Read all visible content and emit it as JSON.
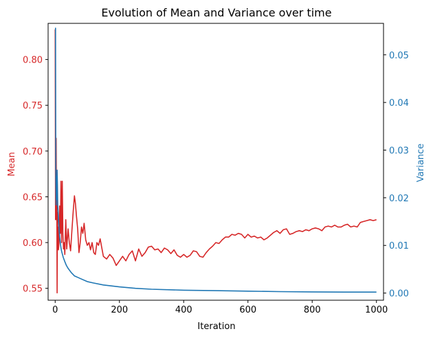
{
  "chart_data": {
    "type": "line",
    "title": "Evolution of Mean and Variance over time",
    "xlabel": "Iteration",
    "ylabel_left": "Mean",
    "ylabel_right": "Variance",
    "xlim": [
      -22,
      1022
    ],
    "ylim_left": [
      0.537,
      0.8395
    ],
    "ylim_right": [
      -0.0015,
      0.0566
    ],
    "x_ticks": [
      0,
      200,
      400,
      600,
      800,
      1000
    ],
    "y_ticks_left": [
      0.55,
      0.6,
      0.65,
      0.7,
      0.75,
      0.8
    ],
    "y_ticks_right": [
      0.0,
      0.01,
      0.02,
      0.03,
      0.04,
      0.05
    ],
    "grid": false,
    "colors": {
      "mean": "#d62728",
      "variance": "#1f77b4",
      "axis": "#000000"
    },
    "series": [
      {
        "name": "Mean",
        "axis": "left",
        "color": "#d62728",
        "x": [
          0,
          1,
          2,
          3,
          4,
          5,
          6,
          7,
          8,
          9,
          10,
          12,
          14,
          16,
          18,
          20,
          22,
          24,
          26,
          28,
          30,
          33,
          36,
          40,
          44,
          48,
          52,
          56,
          60,
          63,
          66,
          70,
          74,
          78,
          82,
          86,
          90,
          95,
          100,
          105,
          110,
          115,
          120,
          125,
          130,
          135,
          140,
          150,
          160,
          170,
          180,
          190,
          200,
          210,
          220,
          230,
          240,
          250,
          260,
          270,
          280,
          290,
          300,
          310,
          320,
          330,
          340,
          350,
          360,
          370,
          380,
          390,
          400,
          410,
          420,
          430,
          440,
          450,
          460,
          470,
          480,
          490,
          500,
          510,
          520,
          530,
          540,
          550,
          560,
          570,
          580,
          590,
          600,
          610,
          620,
          630,
          640,
          650,
          660,
          670,
          680,
          690,
          700,
          710,
          720,
          730,
          740,
          750,
          760,
          770,
          780,
          790,
          800,
          810,
          820,
          830,
          840,
          850,
          860,
          870,
          880,
          890,
          900,
          910,
          920,
          930,
          940,
          950,
          960,
          970,
          980,
          990,
          1000
        ],
        "values": [
          0.833,
          0.625,
          0.667,
          0.714,
          0.625,
          0.667,
          0.545,
          0.633,
          0.6,
          0.617,
          0.592,
          0.6,
          0.64,
          0.61,
          0.667,
          0.6,
          0.667,
          0.61,
          0.593,
          0.6,
          0.587,
          0.625,
          0.593,
          0.615,
          0.6,
          0.591,
          0.613,
          0.634,
          0.651,
          0.643,
          0.63,
          0.615,
          0.589,
          0.6,
          0.617,
          0.61,
          0.621,
          0.603,
          0.597,
          0.6,
          0.592,
          0.6,
          0.589,
          0.587,
          0.6,
          0.597,
          0.604,
          0.585,
          0.582,
          0.587,
          0.583,
          0.575,
          0.58,
          0.585,
          0.58,
          0.587,
          0.591,
          0.58,
          0.593,
          0.585,
          0.589,
          0.595,
          0.596,
          0.592,
          0.593,
          0.589,
          0.594,
          0.592,
          0.588,
          0.592,
          0.586,
          0.584,
          0.587,
          0.584,
          0.586,
          0.591,
          0.59,
          0.585,
          0.584,
          0.589,
          0.593,
          0.596,
          0.6,
          0.599,
          0.603,
          0.606,
          0.606,
          0.609,
          0.608,
          0.61,
          0.609,
          0.605,
          0.609,
          0.606,
          0.607,
          0.605,
          0.606,
          0.603,
          0.605,
          0.608,
          0.611,
          0.613,
          0.61,
          0.614,
          0.615,
          0.609,
          0.61,
          0.612,
          0.613,
          0.612,
          0.614,
          0.613,
          0.615,
          0.616,
          0.615,
          0.613,
          0.617,
          0.618,
          0.617,
          0.619,
          0.617,
          0.617,
          0.619,
          0.62,
          0.617,
          0.618,
          0.617,
          0.622,
          0.623,
          0.624,
          0.625,
          0.624,
          0.625
        ]
      },
      {
        "name": "Variance",
        "axis": "right",
        "color": "#1f77b4",
        "x": [
          0,
          1,
          2,
          3,
          4,
          5,
          6,
          7,
          8,
          10,
          12,
          14,
          16,
          18,
          20,
          25,
          30,
          35,
          40,
          50,
          60,
          70,
          80,
          100,
          120,
          150,
          200,
          250,
          300,
          400,
          500,
          600,
          700,
          800,
          900,
          1000
        ],
        "values": [
          0.0556,
          0.0556,
          0.0235,
          0.0185,
          0.0245,
          0.0196,
          0.0258,
          0.0225,
          0.0185,
          0.0158,
          0.0135,
          0.0118,
          0.0105,
          0.0095,
          0.0088,
          0.0075,
          0.0066,
          0.0058,
          0.0052,
          0.0043,
          0.0036,
          0.0033,
          0.003,
          0.0024,
          0.0021,
          0.0017,
          0.0013,
          0.001,
          0.0008,
          0.0006,
          0.0005,
          0.0004,
          0.0003,
          0.00025,
          0.0002,
          0.0002
        ]
      }
    ]
  }
}
